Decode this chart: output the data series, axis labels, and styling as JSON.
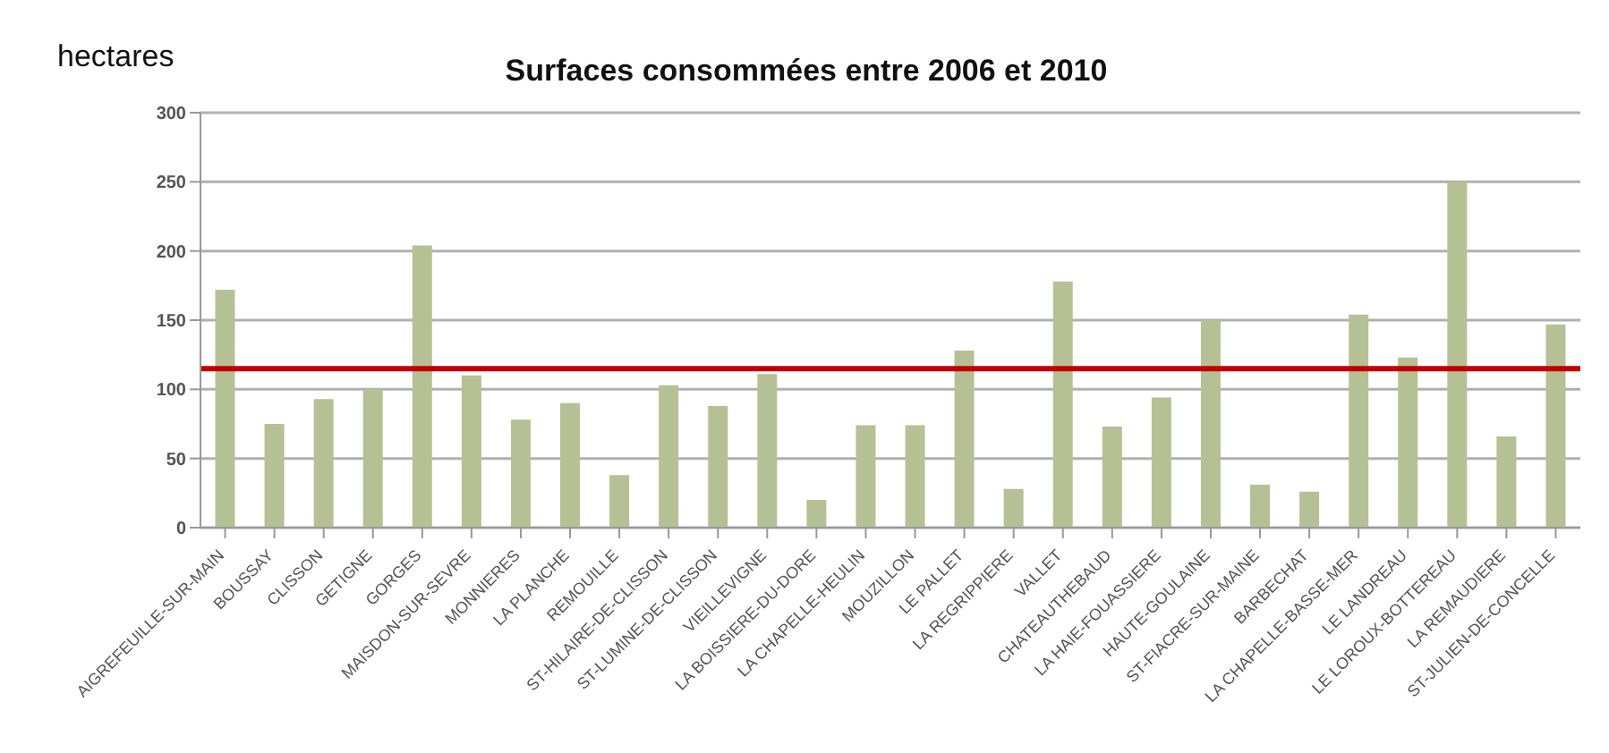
{
  "chart_data": {
    "type": "bar",
    "title": "Surfaces consommées entre 2006 et 2010",
    "ylabel": "hectares",
    "categories": [
      "AIGREFEUILLE-SUR-MAIN",
      "BOUSSAY",
      "CLISSON",
      "GETIGNE",
      "GORGES",
      "MAISDON-SUR-SEVRE",
      "MONNIERES",
      "LA PLANCHE",
      "REMOUILLE",
      "ST-HILAIRE-DE-CLISSON",
      "ST-LUMINE-DE-CLISSON",
      "VIEILLEVIGNE",
      "LA BOISSIERE-DU-DORE",
      "LA CHAPELLE-HEULIN",
      "MOUZILLON",
      "LE PALLET",
      "LA REGRIPPIERE",
      "VALLET",
      "CHATEAUTHEBAUD",
      "LA HAIE-FOUASSIERE",
      "HAUTE-GOULAINE",
      "ST-FIACRE-SUR-MAINE",
      "BARBECHAT",
      "LA CHAPELLE-BASSE-MER",
      "LE LANDREAU",
      "LE LOROUX-BOTTEREAU",
      "LA REMAUDIERE",
      "ST-JULIEN-DE-CONCELLE"
    ],
    "values": [
      172,
      75,
      93,
      100,
      204,
      110,
      78,
      90,
      38,
      103,
      88,
      111,
      20,
      74,
      74,
      128,
      28,
      178,
      73,
      94,
      150,
      31,
      26,
      154,
      123,
      250,
      66,
      147
    ],
    "color": "#b5c194",
    "ylim": [
      0,
      300
    ],
    "yticks": [
      0,
      50,
      100,
      150,
      200,
      250,
      300
    ],
    "grid": "y",
    "ref_lines": [
      {
        "axis": "y",
        "value": 115,
        "color": "#c00000"
      }
    ]
  }
}
